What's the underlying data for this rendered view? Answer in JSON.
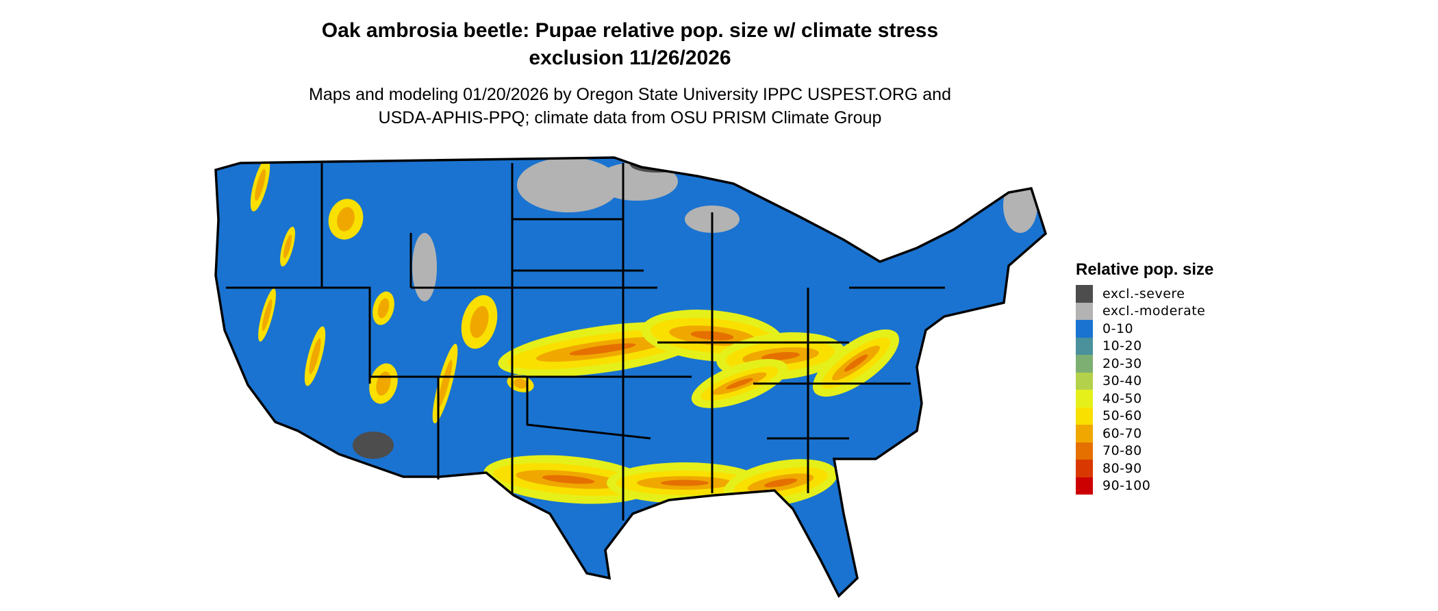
{
  "title_line1": "Oak ambrosia beetle: Pupae relative pop. size w/ climate stress",
  "title_line2": "exclusion 11/26/2026",
  "subtitle_line1": "Maps and modeling 01/20/2026 by Oregon State University IPPC USPEST.ORG and",
  "subtitle_line2": "USDA-APHIS-PPQ; climate data from OSU PRISM Climate Group",
  "legend": {
    "title": "Relative pop. size",
    "items": [
      {
        "label": "excl.-severe",
        "color": "#4d4d4d"
      },
      {
        "label": "excl.-moderate",
        "color": "#b3b3b3"
      },
      {
        "label": "0-10",
        "color": "#1a73d0"
      },
      {
        "label": "10-20",
        "color": "#4a919c"
      },
      {
        "label": "20-30",
        "color": "#7daf73"
      },
      {
        "label": "30-40",
        "color": "#b3d14a"
      },
      {
        "label": "40-50",
        "color": "#e5f01a"
      },
      {
        "label": "50-60",
        "color": "#f9e000"
      },
      {
        "label": "60-70",
        "color": "#f0a800"
      },
      {
        "label": "70-80",
        "color": "#e57000"
      },
      {
        "label": "80-90",
        "color": "#d93800"
      },
      {
        "label": "90-100",
        "color": "#cc0000"
      }
    ]
  }
}
